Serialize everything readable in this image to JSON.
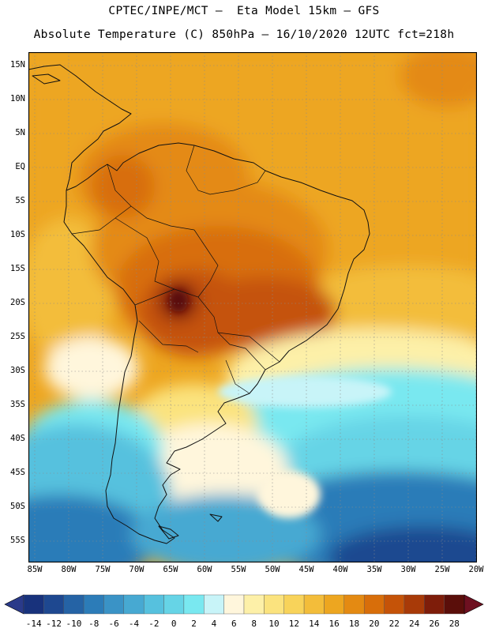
{
  "header": {
    "line1": "CPTEC/INPE/MCT –  Eta Model 15km – GFS",
    "line2": "Absolute Temperature (C) 850hPa – 16/10/2020 12UTC fct=218h"
  },
  "axes": {
    "lat_labels": [
      "15N",
      "10N",
      "5N",
      "EQ",
      "5S",
      "10S",
      "15S",
      "20S",
      "25S",
      "30S",
      "35S",
      "40S",
      "45S",
      "50S",
      "55S"
    ],
    "lon_labels": [
      "85W",
      "80W",
      "75W",
      "70W",
      "65W",
      "60W",
      "55W",
      "50W",
      "45W",
      "40W",
      "35W",
      "30W",
      "25W",
      "20W"
    ]
  },
  "colorbar": {
    "ticks": [
      "-14",
      "-12",
      "-10",
      "-8",
      "-6",
      "-4",
      "-2",
      "0",
      "2",
      "4",
      "6",
      "8",
      "10",
      "12",
      "14",
      "16",
      "18",
      "20",
      "22",
      "24",
      "26",
      "28"
    ],
    "colors": [
      "#18327c",
      "#1e4890",
      "#2563a5",
      "#2c7cb8",
      "#3a93c6",
      "#47a9d2",
      "#56c1de",
      "#66d4e6",
      "#79e8f0",
      "#c8f4f8",
      "#fff6dc",
      "#fdf0a8",
      "#fbe37e",
      "#f8d35a",
      "#f3bd3a",
      "#eda620",
      "#e48a12",
      "#d86e0a",
      "#c55308",
      "#a83a08",
      "#7e1d0a",
      "#5a0e0a"
    ],
    "low_color": "#2a3a8a",
    "high_color": "#6e1020"
  }
}
